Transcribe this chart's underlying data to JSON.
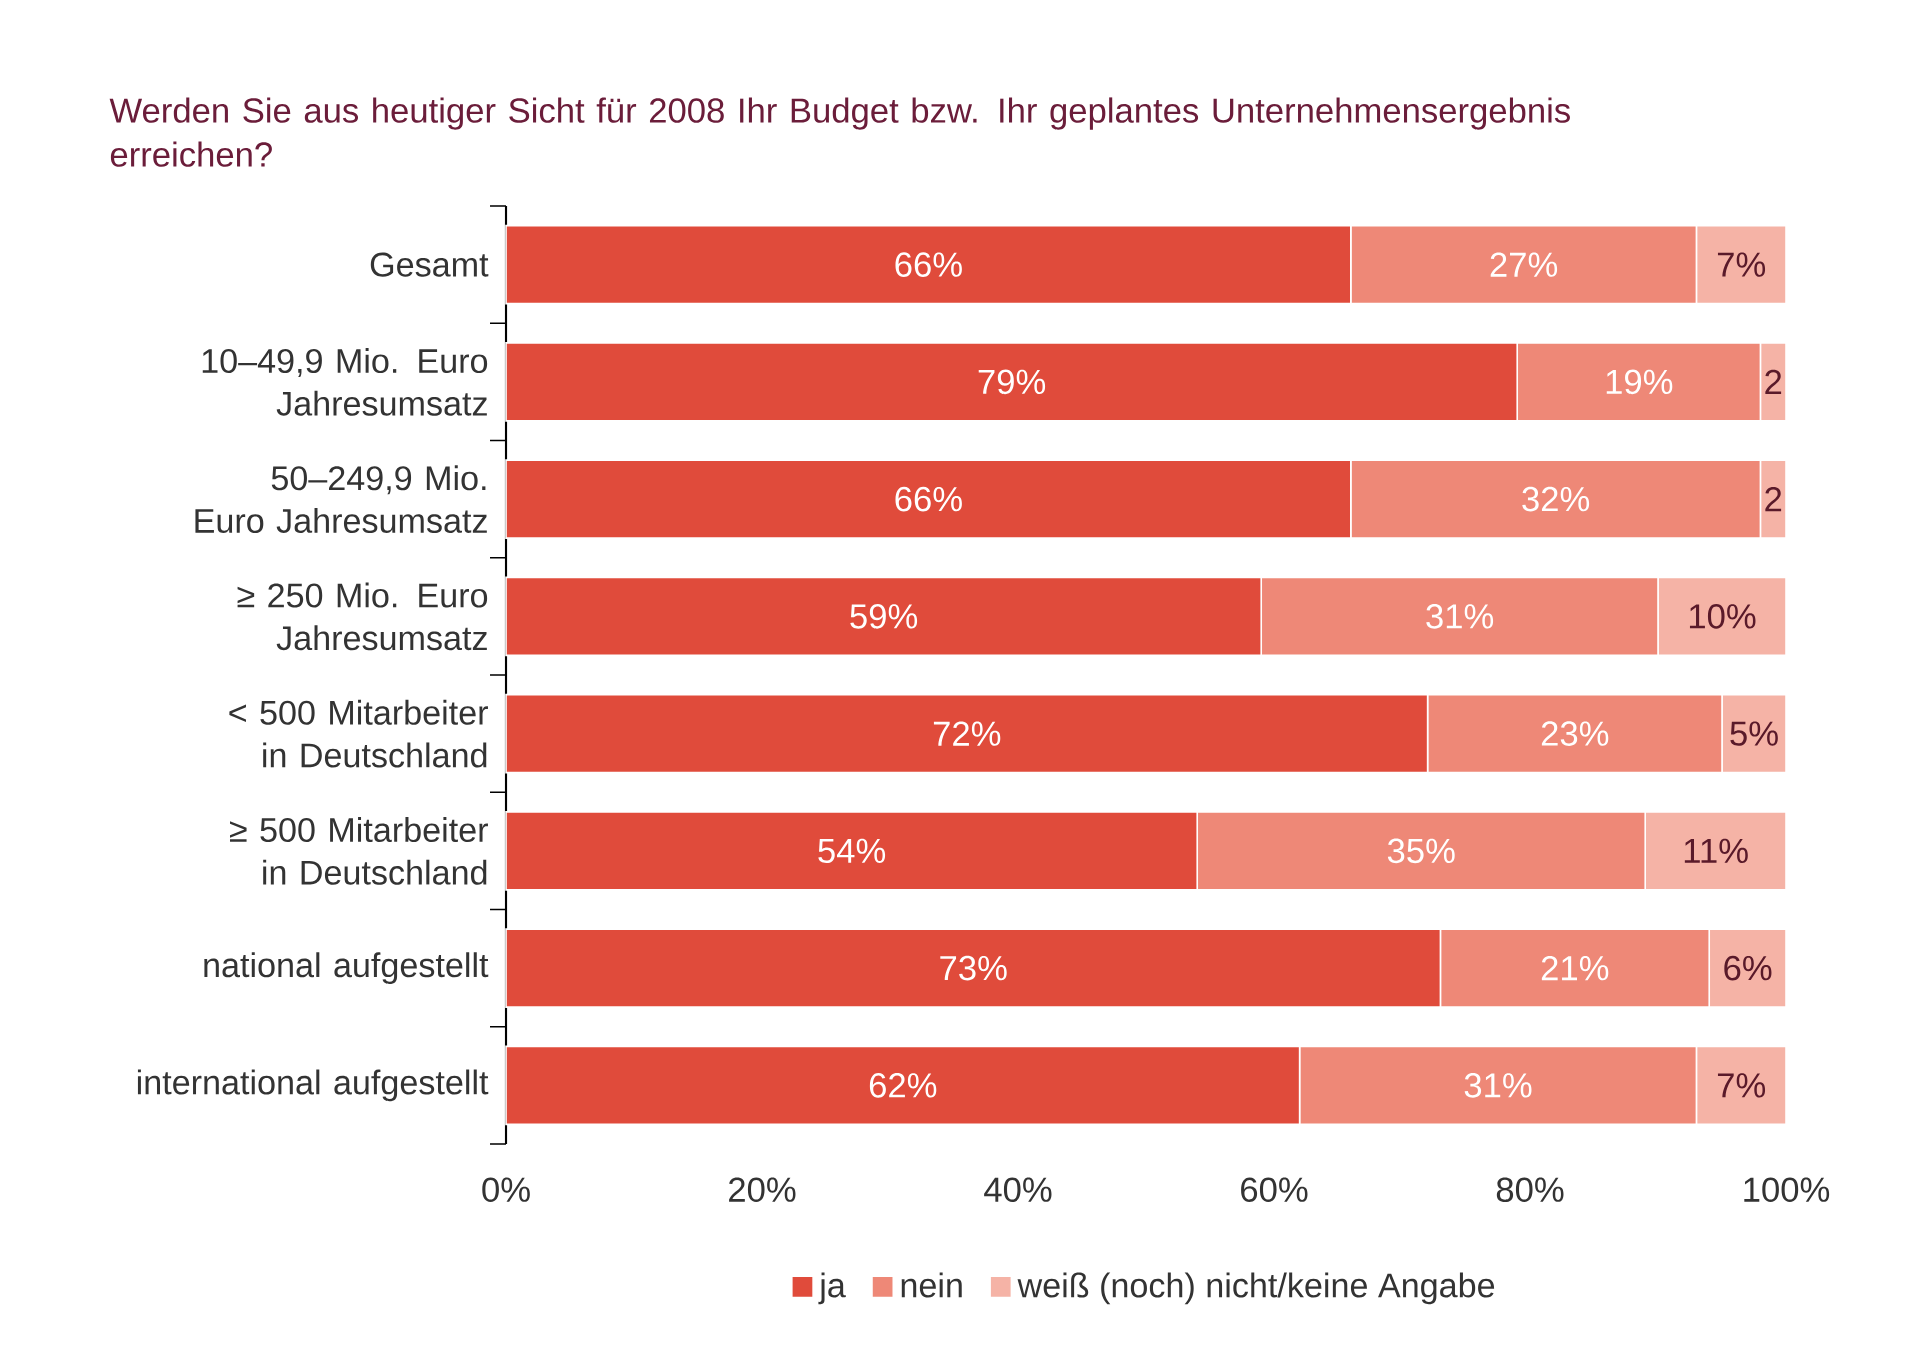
{
  "chart_data": {
    "type": "bar",
    "orientation": "horizontal",
    "stacked": true,
    "title": "Werden Sie aus heutiger Sicht für 2008 Ihr Budget bzw. Ihr geplantes Unternehmensergebnis erreichen?",
    "categories": [
      "Gesamt",
      "10–49,9 Mio. Euro Jahresumsatz",
      "50–249,9 Mio. Euro Jahresumsatz",
      "≥ 250 Mio. Euro Jahresumsatz",
      "< 500 Mitarbeiter in Deutschland",
      "≥ 500 Mitarbeiter in Deutschland",
      "national aufgestellt",
      "international aufgestellt"
    ],
    "series": [
      {
        "name": "ja",
        "color": "#e04b3b",
        "values": [
          66,
          79,
          66,
          59,
          72,
          54,
          73,
          62
        ],
        "value_labels": [
          "66%",
          "79%",
          "66%",
          "59%",
          "72%",
          "54%",
          "73%",
          "62%"
        ]
      },
      {
        "name": "nein",
        "color": "#ee8877",
        "values": [
          27,
          19,
          32,
          31,
          23,
          35,
          21,
          31
        ],
        "value_labels": [
          "27%",
          "19%",
          "32%",
          "31%",
          "23%",
          "35%",
          "21%",
          "31%"
        ]
      },
      {
        "name": "weiß (noch) nicht/keine Angabe",
        "color": "#f5b3a6",
        "values": [
          7,
          2,
          2,
          10,
          5,
          11,
          6,
          7
        ],
        "value_labels": [
          "7%",
          "2",
          "2",
          "10%",
          "5%",
          "11%",
          "6%",
          "7%"
        ]
      }
    ],
    "xlim": [
      0,
      100
    ],
    "xticks": [
      {
        "value": 0,
        "label": "0%"
      },
      {
        "value": 20,
        "label": "20%"
      },
      {
        "value": 40,
        "label": "40%"
      },
      {
        "value": 60,
        "label": "60%"
      },
      {
        "value": 80,
        "label": "80%"
      },
      {
        "value": 100,
        "label": "100%"
      }
    ],
    "legend": "bottom"
  }
}
